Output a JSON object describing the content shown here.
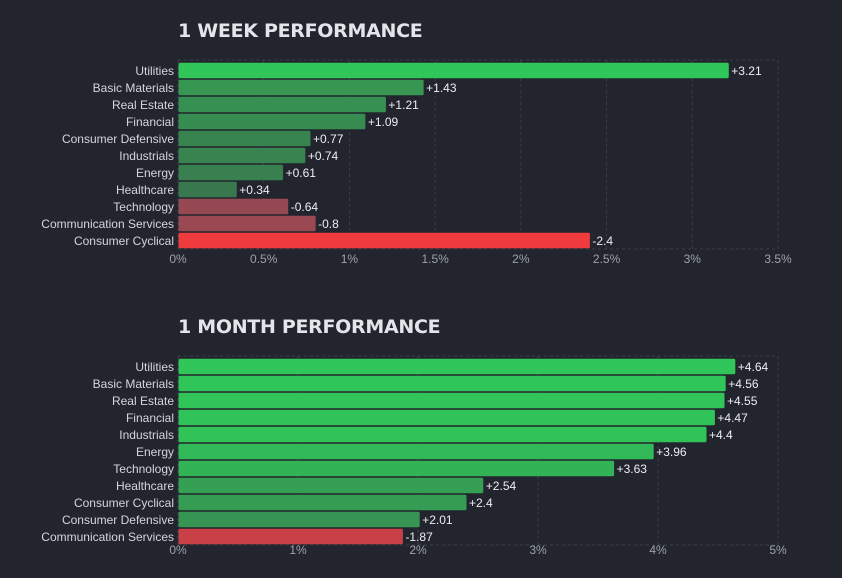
{
  "charts": [
    {
      "title": "1 WEEK PERFORMANCE"
    },
    {
      "title": "1 MONTH PERFORMANCE"
    }
  ],
  "chart_data": [
    {
      "type": "bar",
      "orientation": "horizontal",
      "title": "1 WEEK PERFORMANCE",
      "categories": [
        "Utilities",
        "Basic Materials",
        "Real Estate",
        "Financial",
        "Consumer Defensive",
        "Industrials",
        "Energy",
        "Healthcare",
        "Technology",
        "Communication Services",
        "Consumer Cyclical"
      ],
      "values": [
        3.21,
        1.43,
        1.21,
        1.09,
        0.77,
        0.74,
        0.61,
        0.34,
        -0.64,
        -0.8,
        -2.4
      ],
      "value_labels": [
        "+3.21",
        "+1.43",
        "+1.21",
        "+1.09",
        "+0.77",
        "+0.74",
        "+0.61",
        "+0.34",
        "-0.64",
        "-0.8",
        "-2.4"
      ],
      "bar_length": "absolute value",
      "xlim": [
        0,
        3.5
      ],
      "xticks": [
        0,
        0.5,
        1,
        1.5,
        2,
        2.5,
        3,
        3.5
      ],
      "xtick_labels": [
        "0%",
        "0.5%",
        "1%",
        "1.5%",
        "2%",
        "2.5%",
        "3%",
        "3.5%"
      ],
      "xlabel": "",
      "ylabel": "",
      "grid": true
    },
    {
      "type": "bar",
      "orientation": "horizontal",
      "title": "1 MONTH PERFORMANCE",
      "categories": [
        "Utilities",
        "Basic Materials",
        "Real Estate",
        "Financial",
        "Industrials",
        "Energy",
        "Technology",
        "Healthcare",
        "Consumer Cyclical",
        "Consumer Defensive",
        "Communication Services"
      ],
      "values": [
        4.64,
        4.56,
        4.55,
        4.47,
        4.4,
        3.96,
        3.63,
        2.54,
        2.4,
        2.01,
        -1.87
      ],
      "value_labels": [
        "+4.64",
        "+4.56",
        "+4.55",
        "+4.47",
        "+4.4",
        "+3.96",
        "+3.63",
        "+2.54",
        "+2.4",
        "+2.01",
        "-1.87"
      ],
      "bar_length": "absolute value",
      "xlim": [
        0,
        5
      ],
      "xticks": [
        0,
        1,
        2,
        3,
        4,
        5
      ],
      "xtick_labels": [
        "0%",
        "1%",
        "2%",
        "3%",
        "4%",
        "5%"
      ],
      "xlabel": "",
      "ylabel": "",
      "grid": true
    }
  ],
  "colors": {
    "background": "#22252d",
    "grid": "#3a3e48",
    "positive_strong": "#30c659",
    "positive_weak": "#3a6f4d",
    "negative_strong": "#ef3b3d",
    "negative_weak": "#8f4a55"
  }
}
